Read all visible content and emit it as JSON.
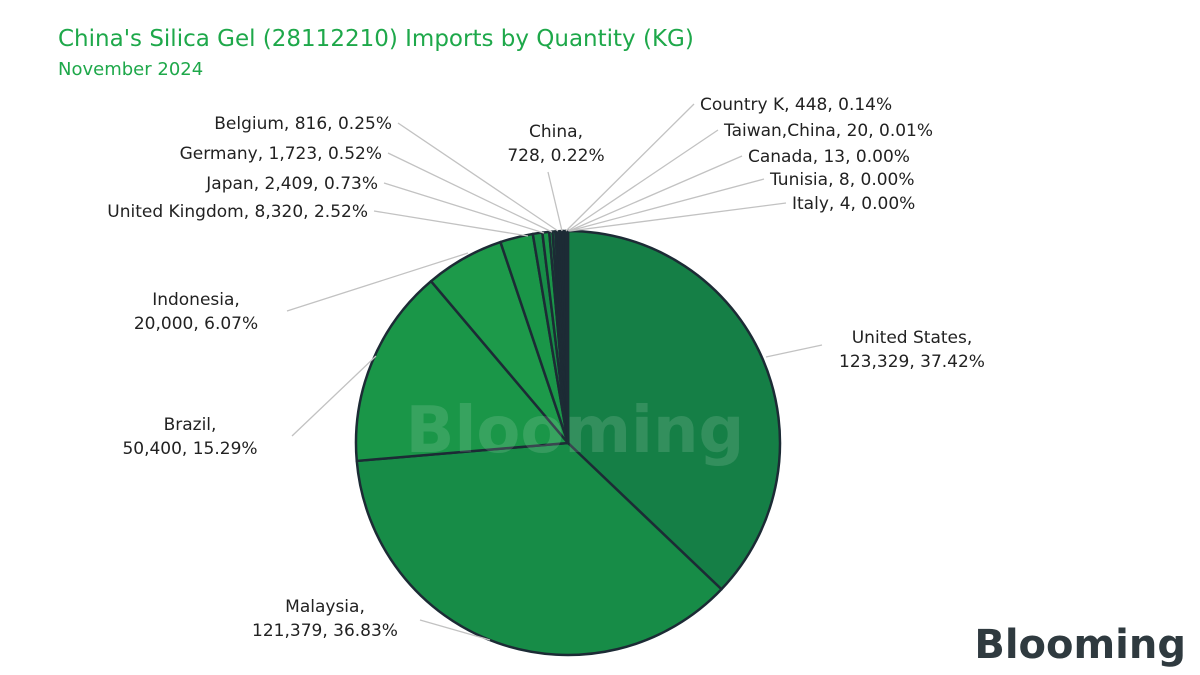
{
  "chart_data": {
    "type": "pie",
    "title": "China's Silica Gel (28112210) Imports by Quantity (KG)",
    "subtitle": "November 2024",
    "watermark": "Blooming",
    "logo": "Blooming",
    "slices": [
      {
        "label": "United States",
        "value": 123329,
        "percent": "37.42%",
        "color": "#157f46"
      },
      {
        "label": "Malaysia",
        "value": 121379,
        "percent": "36.83%",
        "color": "#178c47"
      },
      {
        "label": "Brazil",
        "value": 50400,
        "percent": "15.29%",
        "color": "#1a9648"
      },
      {
        "label": "Indonesia",
        "value": 20000,
        "percent": "6.07%",
        "color": "#1d9a4a"
      },
      {
        "label": "United Kingdom",
        "value": 8320,
        "percent": "2.52%",
        "color": "#1a9648"
      },
      {
        "label": "Japan",
        "value": 2409,
        "percent": "0.73%",
        "color": "#178c47"
      },
      {
        "label": "Germany",
        "value": 1723,
        "percent": "0.52%",
        "color": "#1a9648"
      },
      {
        "label": "Belgium",
        "value": 816,
        "percent": "0.25%",
        "color": "#1d9a4a"
      },
      {
        "label": "China",
        "value": 728,
        "percent": "0.22%",
        "color": "#178c47"
      },
      {
        "label": "Country K",
        "value": 448,
        "percent": "0.14%",
        "color": "#1a2a3a"
      },
      {
        "label": "Taiwan,China",
        "value": 20,
        "percent": "0.01%",
        "color": "#1a2a3a"
      },
      {
        "label": "Canada",
        "value": 13,
        "percent": "0.00%",
        "color": "#1a2a3a"
      },
      {
        "label": "Tunisia",
        "value": 8,
        "percent": "0.00%",
        "color": "#1a2a3a"
      },
      {
        "label": "Italy",
        "value": 4,
        "percent": "0.00%",
        "color": "#1a2a3a"
      }
    ],
    "labels": [
      {
        "lines": [
          "United States,",
          "123,329, 37.42%"
        ]
      },
      {
        "lines": [
          "Malaysia,",
          "121,379, 36.83%"
        ]
      },
      {
        "lines": [
          "Brazil,",
          "50,400, 15.29%"
        ]
      },
      {
        "lines": [
          "Indonesia,",
          "20,000, 6.07%"
        ]
      },
      {
        "lines": [
          "United Kingdom, 8,320, 2.52%"
        ]
      },
      {
        "lines": [
          "Japan, 2,409, 0.73%"
        ]
      },
      {
        "lines": [
          "Germany, 1,723, 0.52%"
        ]
      },
      {
        "lines": [
          "Belgium, 816, 0.25%"
        ]
      },
      {
        "lines": [
          "China,",
          "728, 0.22%"
        ]
      },
      {
        "lines": [
          "Country K, 448, 0.14%"
        ]
      },
      {
        "lines": [
          "Taiwan,China, 20, 0.01%"
        ]
      },
      {
        "lines": [
          "Canada, 13, 0.00%"
        ]
      },
      {
        "lines": [
          "Tunisia, 8, 0.00%"
        ]
      },
      {
        "lines": [
          "Italy, 4, 0.00%"
        ]
      }
    ]
  }
}
